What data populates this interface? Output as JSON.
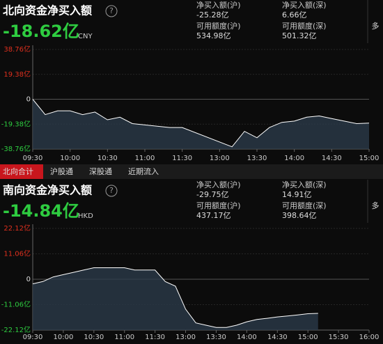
{
  "panels": [
    {
      "title": "北向资金净买入额",
      "help": "?",
      "total": "-18.62亿",
      "currency": "CNY",
      "more": "多",
      "stats": [
        [
          "净买入额(沪)",
          "-25.28亿"
        ],
        [
          "净买入额(深)",
          "6.66亿"
        ],
        [
          "可用额度(沪)",
          "534.98亿"
        ],
        [
          "可用额度(深)",
          "501.32亿"
        ]
      ]
    },
    {
      "title": "南向资金净买入额",
      "help": "?",
      "total": "-14.84亿",
      "currency": "HKD",
      "more": "多",
      "stats": [
        [
          "净买入额(沪)",
          "-29.75亿"
        ],
        [
          "净买入额(深)",
          "14.91亿"
        ],
        [
          "可用额度(沪)",
          "437.17亿"
        ],
        [
          "可用额度(深)",
          "398.64亿"
        ]
      ]
    }
  ],
  "tabs": [
    "北向合计",
    "沪股通",
    "深股通",
    "近期流入"
  ],
  "chart_data": [
    {
      "type": "line",
      "color": "#ffffff",
      "fill_color": "#2b3a48",
      "x": [
        "09:30",
        "09:40",
        "09:50",
        "10:00",
        "10:10",
        "10:20",
        "10:30",
        "10:40",
        "10:50",
        "11:00",
        "11:10",
        "11:20",
        "11:30",
        "13:10",
        "13:20",
        "13:30",
        "13:40",
        "13:50",
        "14:00",
        "14:10",
        "14:20",
        "14:30",
        "14:40",
        "14:50",
        "15:00"
      ],
      "values": [
        0,
        -12,
        -9,
        -9,
        -12,
        -10,
        -16,
        -14,
        -19,
        -20,
        -21,
        -22,
        -22,
        -37,
        -25,
        -30,
        -22,
        -18,
        -17,
        -14,
        -13,
        -15,
        -17,
        -19,
        -18.62
      ],
      "ylim": [
        -38.76,
        38.76
      ],
      "yticks": [
        {
          "value": 38.76,
          "label": "38.76亿"
        },
        {
          "value": 19.38,
          "label": "19.38亿"
        },
        0,
        {
          "value": -19.38,
          "label": "-19.38亿"
        },
        {
          "value": -38.76,
          "label": "-38.76亿"
        }
      ],
      "xticks": [
        "09:30",
        "10:00",
        "10:30",
        "11:00",
        "11:30",
        "13:00",
        "13:30",
        "14:00",
        "14:30",
        "15:00"
      ],
      "grid": true
    },
    {
      "type": "line",
      "color": "#ffffff",
      "fill_color": "#2b3a48",
      "x": [
        "09:30",
        "09:40",
        "09:50",
        "10:00",
        "10:10",
        "10:20",
        "10:30",
        "10:40",
        "10:50",
        "11:00",
        "11:10",
        "11:20",
        "11:30",
        "11:40",
        "11:50",
        "12:00",
        "13:10",
        "13:20",
        "13:30",
        "13:40",
        "13:50",
        "14:00",
        "14:10",
        "14:20",
        "14:30",
        "14:40",
        "14:50",
        "15:00",
        "15:10"
      ],
      "values": [
        -2,
        -1,
        1,
        2,
        3,
        4,
        5,
        5,
        5,
        5,
        4,
        4,
        4,
        -1,
        -3,
        -13,
        -19,
        -20,
        -21,
        -21,
        -20,
        -18.5,
        -17.5,
        -17,
        -16.4,
        -16,
        -15.5,
        -15,
        -14.84
      ],
      "ylim": [
        -22.12,
        22.12
      ],
      "yticks": [
        {
          "value": 22.12,
          "label": "22.12亿"
        },
        {
          "value": 11.06,
          "label": "11.06亿"
        },
        0,
        {
          "value": -11.06,
          "label": "-11.06亿"
        },
        {
          "value": -22.12,
          "label": "-22.12亿"
        }
      ],
      "xticks": [
        "09:30",
        "10:00",
        "10:30",
        "11:00",
        "11:30",
        "13:00",
        "13:30",
        "14:00",
        "14:30",
        "15:00",
        "15:30",
        "16:00"
      ],
      "grid": true
    }
  ]
}
